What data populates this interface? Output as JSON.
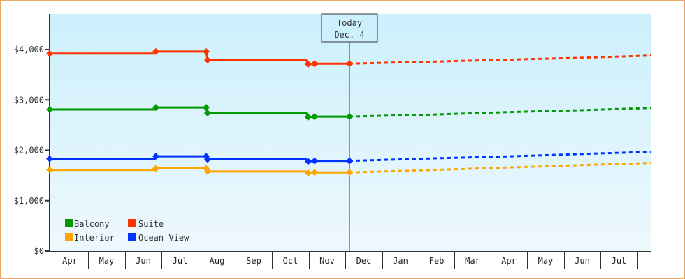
{
  "chart_data": {
    "type": "line",
    "title": "",
    "xlabel": "",
    "ylabel": "",
    "ylim": [
      0,
      4700
    ],
    "y_ticks": [
      "$0",
      "$1,000",
      "$2,000",
      "$3,000",
      "$4,000"
    ],
    "y_tick_values": [
      0,
      1000,
      2000,
      3000,
      4000
    ],
    "x_tick_labels": [
      "Apr",
      "May",
      "Jun",
      "Jul",
      "Aug",
      "Sep",
      "Oct",
      "Nov",
      "Dec",
      "Jan",
      "Feb",
      "Mar",
      "Apr",
      "May",
      "Jun",
      "Jul"
    ],
    "grid": false,
    "legend_position": "lower-left inside",
    "annotation": {
      "label_line1": "Today",
      "label_line2": "Dec. 4"
    },
    "historical_note": "solid lines = historical prices (Apr–Dec 4); dotted lines = projected prices (Dec 4 onward)",
    "series": [
      {
        "name": "Suite",
        "color": "#ff3300",
        "historical": [
          {
            "x": "Apr 1",
            "y": 3920
          },
          {
            "x": "Jun 30",
            "y": 3920
          },
          {
            "x": "Jul 1",
            "y": 3960
          },
          {
            "x": "Aug 1",
            "y": 3960
          },
          {
            "x": "Aug 2",
            "y": 3790
          },
          {
            "x": "Oct 26",
            "y": 3790
          },
          {
            "x": "Oct 28",
            "y": 3710
          },
          {
            "x": "Nov 3",
            "y": 3720
          },
          {
            "x": "Dec 4",
            "y": 3720
          }
        ],
        "projected": [
          {
            "x": "Dec 4",
            "y": 3720
          },
          {
            "x": "Feb",
            "y": 3760
          },
          {
            "x": "Apr",
            "y": 3800
          },
          {
            "x": "Jun",
            "y": 3840
          },
          {
            "x": "end",
            "y": 3880
          }
        ]
      },
      {
        "name": "Balcony",
        "color": "#009900",
        "historical": [
          {
            "x": "Apr 1",
            "y": 2810
          },
          {
            "x": "Jun 30",
            "y": 2810
          },
          {
            "x": "Jul 1",
            "y": 2850
          },
          {
            "x": "Aug 1",
            "y": 2850
          },
          {
            "x": "Aug 2",
            "y": 2740
          },
          {
            "x": "Oct 26",
            "y": 2740
          },
          {
            "x": "Oct 28",
            "y": 2660
          },
          {
            "x": "Nov 3",
            "y": 2670
          },
          {
            "x": "Dec 4",
            "y": 2670
          }
        ],
        "projected": [
          {
            "x": "Dec 4",
            "y": 2670
          },
          {
            "x": "Feb",
            "y": 2710
          },
          {
            "x": "Apr",
            "y": 2760
          },
          {
            "x": "Jun",
            "y": 2800
          },
          {
            "x": "end",
            "y": 2840
          }
        ]
      },
      {
        "name": "Ocean View",
        "color": "#0033ff",
        "historical": [
          {
            "x": "Apr 1",
            "y": 1830
          },
          {
            "x": "Jun 30",
            "y": 1830
          },
          {
            "x": "Jul 1",
            "y": 1880
          },
          {
            "x": "Aug 1",
            "y": 1880
          },
          {
            "x": "Aug 2",
            "y": 1820
          },
          {
            "x": "Oct 26",
            "y": 1820
          },
          {
            "x": "Oct 28",
            "y": 1780
          },
          {
            "x": "Nov 3",
            "y": 1790
          },
          {
            "x": "Dec 4",
            "y": 1790
          }
        ],
        "projected": [
          {
            "x": "Dec 4",
            "y": 1790
          },
          {
            "x": "Feb",
            "y": 1840
          },
          {
            "x": "Apr",
            "y": 1880
          },
          {
            "x": "Jun",
            "y": 1930
          },
          {
            "x": "end",
            "y": 1970
          }
        ]
      },
      {
        "name": "Interior",
        "color": "#ffa500",
        "historical": [
          {
            "x": "Apr 1",
            "y": 1610
          },
          {
            "x": "Jun 30",
            "y": 1610
          },
          {
            "x": "Jul 1",
            "y": 1640
          },
          {
            "x": "Aug 1",
            "y": 1640
          },
          {
            "x": "Aug 2",
            "y": 1580
          },
          {
            "x": "Oct 26",
            "y": 1580
          },
          {
            "x": "Oct 28",
            "y": 1550
          },
          {
            "x": "Nov 3",
            "y": 1560
          },
          {
            "x": "Dec 4",
            "y": 1560
          }
        ],
        "projected": [
          {
            "x": "Dec 4",
            "y": 1560
          },
          {
            "x": "Feb",
            "y": 1610
          },
          {
            "x": "Apr",
            "y": 1660
          },
          {
            "x": "Jun",
            "y": 1710
          },
          {
            "x": "end",
            "y": 1750
          }
        ]
      }
    ]
  },
  "legend": {
    "items": [
      {
        "label": "Balcony",
        "color": "#009900"
      },
      {
        "label": "Suite",
        "color": "#ff3300"
      },
      {
        "label": "Interior",
        "color": "#ffa500"
      },
      {
        "label": "Ocean View",
        "color": "#0033ff"
      }
    ]
  },
  "today_marker": {
    "line1": "Today",
    "line2": "Dec. 4"
  },
  "colors": {
    "frame": "#e8a868",
    "plot_top": "#ccf0fc",
    "plot_bottom": "#eef8fd",
    "axis": "#333333"
  }
}
